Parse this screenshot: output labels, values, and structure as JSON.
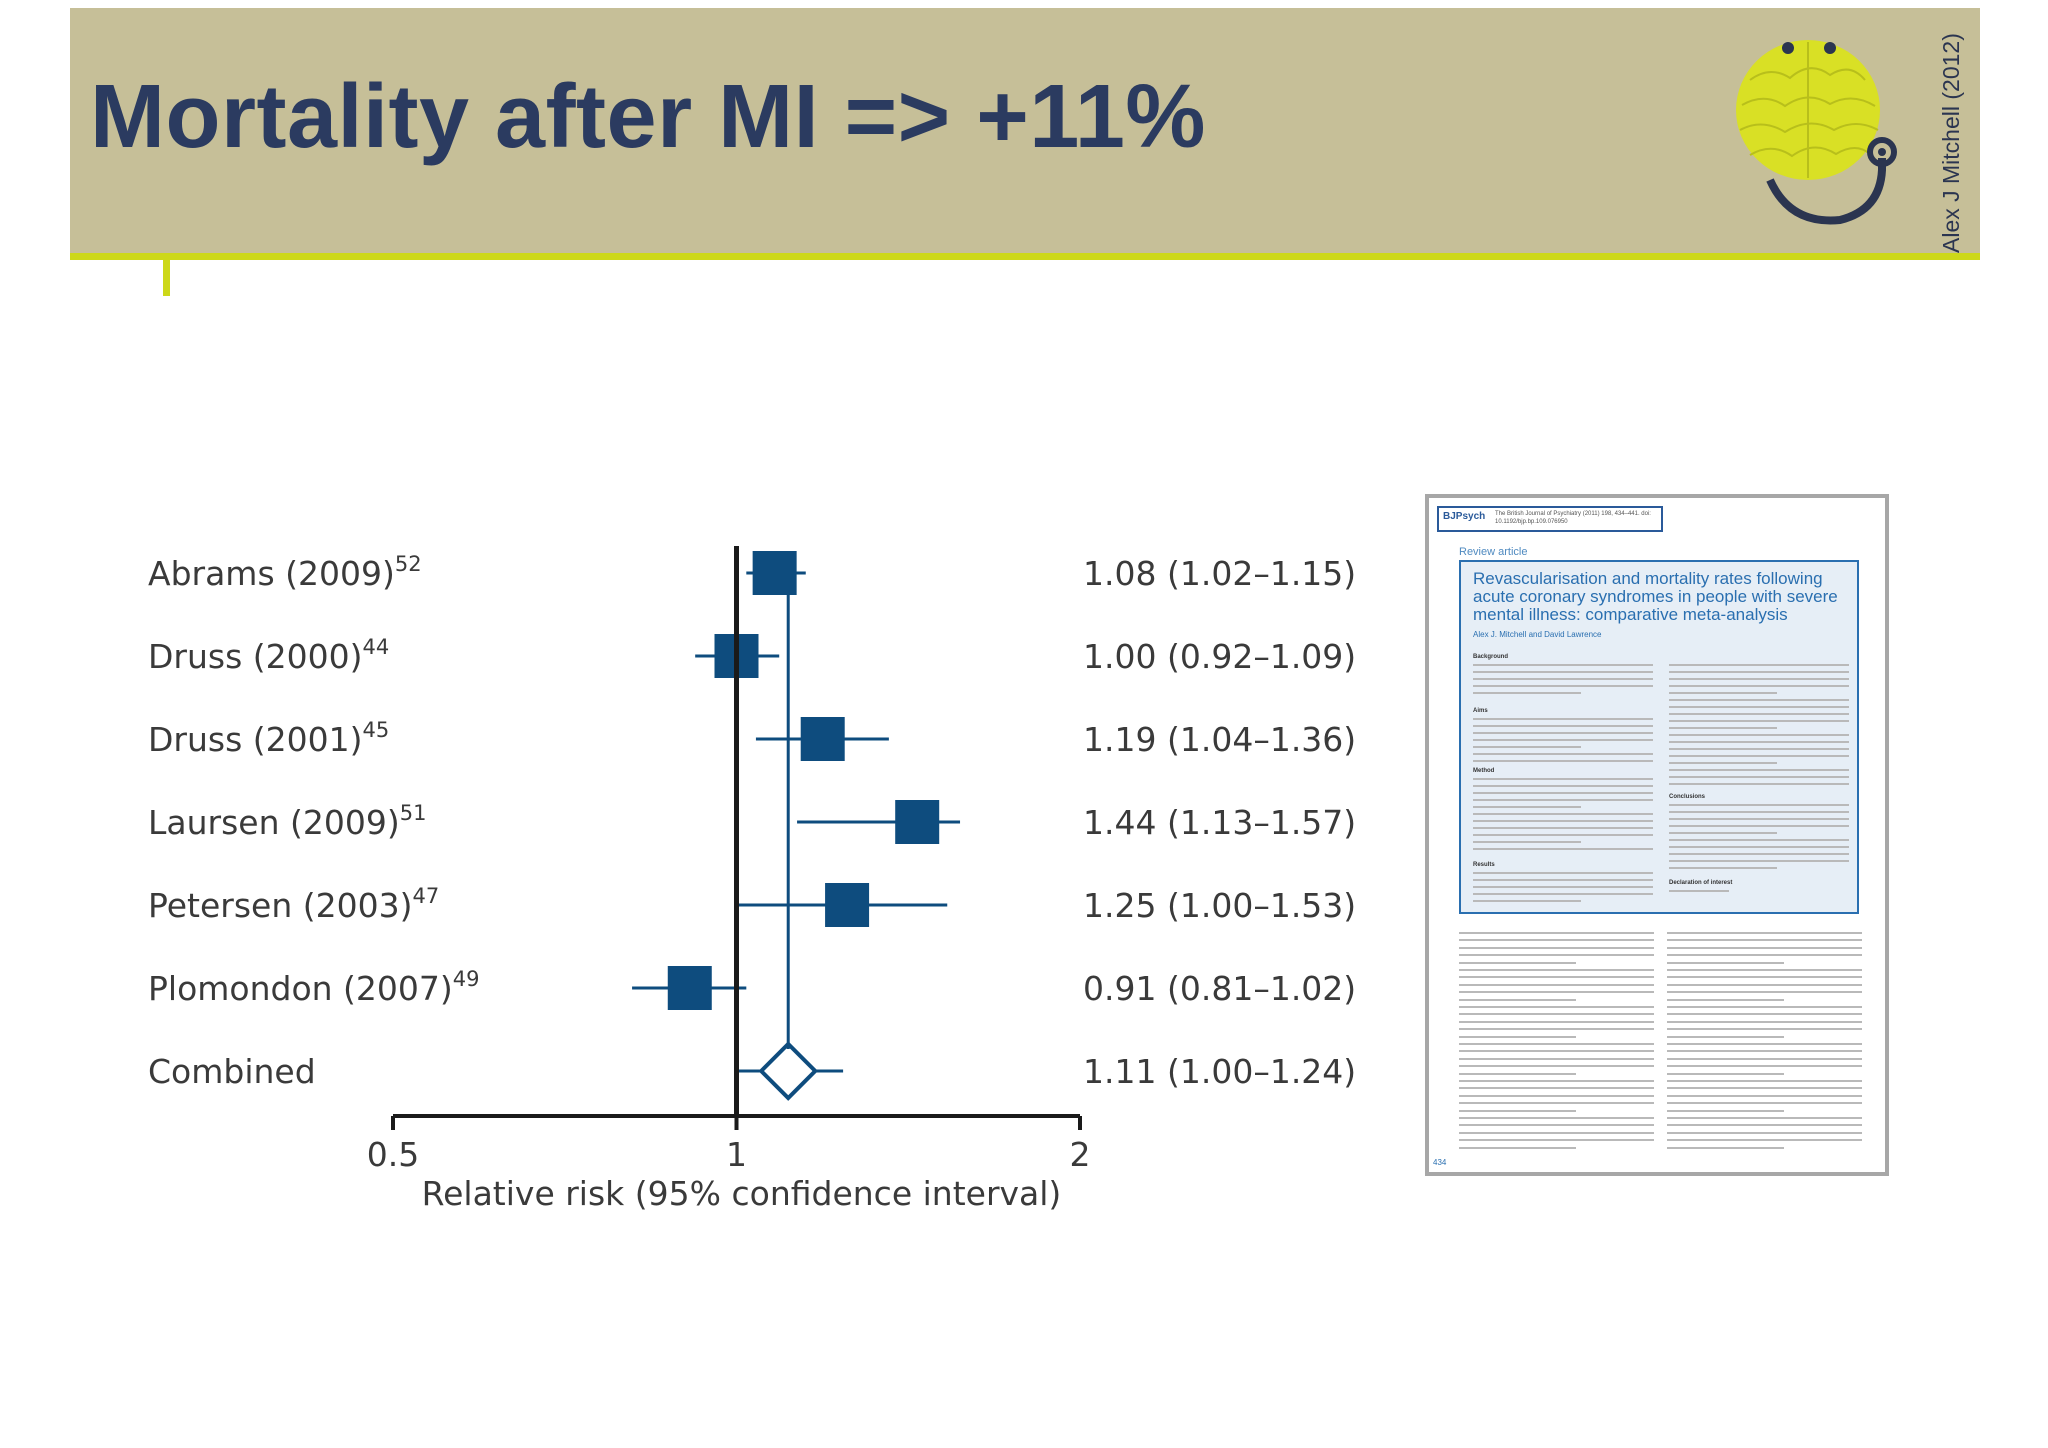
{
  "slide": {
    "title": "Mortality after MI => +11%",
    "credit": "Alex J Mitchell (2012)",
    "logo_icon": "brain-stethoscope-logo",
    "colors": {
      "header": "#c6bf98",
      "accent": "#cdd819",
      "title": "#2b3b60",
      "marker": "#0e4c7e"
    }
  },
  "chart_data": {
    "type": "forest",
    "xlabel": "Relative risk (95% confidence interval)",
    "xscale": "log",
    "xlim": [
      0.5,
      2
    ],
    "xticks": [
      {
        "value": 0.5,
        "label": "0.5"
      },
      {
        "value": 1,
        "label": "1"
      },
      {
        "value": 2,
        "label": "2"
      }
    ],
    "reference_line": 1,
    "combined_line": 1.11,
    "studies": [
      {
        "name": "Abrams (2009)",
        "ref": "52",
        "rr": 1.08,
        "lo": 1.02,
        "hi": 1.15,
        "text": "1.08 (1.02–1.15)"
      },
      {
        "name": "Druss (2000)",
        "ref": "44",
        "rr": 1.0,
        "lo": 0.92,
        "hi": 1.09,
        "text": "1.00 (0.92–1.09)"
      },
      {
        "name": "Druss (2001)",
        "ref": "45",
        "rr": 1.19,
        "lo": 1.04,
        "hi": 1.36,
        "text": "1.19 (1.04–1.36)"
      },
      {
        "name": "Laursen (2009)",
        "ref": "51",
        "rr": 1.44,
        "lo": 1.13,
        "hi": 1.57,
        "text": "1.44 (1.13–1.57)"
      },
      {
        "name": "Petersen (2003)",
        "ref": "47",
        "rr": 1.25,
        "lo": 1.0,
        "hi": 1.53,
        "text": "1.25 (1.00–1.53)"
      },
      {
        "name": "Plomondon (2007)",
        "ref": "49",
        "rr": 0.91,
        "lo": 0.81,
        "hi": 1.02,
        "text": "0.91 (0.81–1.02)"
      }
    ],
    "combined": {
      "name": "Combined",
      "rr": 1.11,
      "lo": 1.0,
      "hi": 1.24,
      "text": "1.11 (1.00–1.24)"
    }
  },
  "paper_thumbnail": {
    "journal_logo": "BJPsych",
    "journal_line": "The British Journal of Psychiatry (2011) 198, 434–441. doi: 10.1192/bjp.bp.109.076950",
    "section": "Review article",
    "title": "Revascularisation and mortality rates following acute coronary syndromes in people with severe mental illness: comparative meta-analysis",
    "authors": "Alex J. Mitchell and David Lawrence",
    "headings": [
      "Background",
      "Aims",
      "Method",
      "Results",
      "Conclusions",
      "Declaration of interest"
    ],
    "page_number": "434"
  }
}
